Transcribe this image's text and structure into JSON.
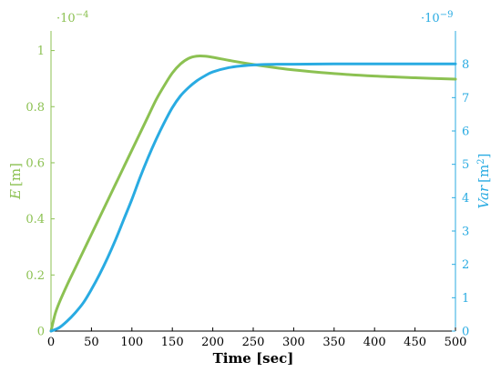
{
  "chart_data": {
    "type": "line",
    "x_axis": {
      "label": "Time [sec]",
      "range": [
        0,
        500
      ],
      "ticks": [
        0,
        50,
        100,
        150,
        200,
        250,
        300,
        350,
        400,
        450,
        500
      ],
      "tick_labels": [
        "0",
        "50",
        "100",
        "150",
        "200",
        "250",
        "300",
        "350",
        "400",
        "450",
        "500"
      ]
    },
    "left_axis": {
      "label_var": "E",
      "label_unit": "[m]",
      "multiplier_base": "·10",
      "multiplier_exp": "−4",
      "range": [
        0,
        1.07
      ],
      "ticks": [
        0,
        0.2,
        0.4,
        0.6,
        0.8,
        1
      ],
      "tick_labels": [
        "0",
        "0.2",
        "0.4",
        "0.6",
        "0.8",
        "1"
      ],
      "color": "#8cc152"
    },
    "right_axis": {
      "label_var": "Var",
      "label_unit_open": "[m",
      "label_unit_exp": "2",
      "label_unit_close": "]",
      "multiplier_base": "·10",
      "multiplier_exp": "−9",
      "range": [
        0,
        9.0
      ],
      "ticks": [
        0,
        1,
        2,
        3,
        4,
        5,
        6,
        7,
        8
      ],
      "tick_labels": [
        "0",
        "1",
        "2",
        "3",
        "4",
        "5",
        "6",
        "7",
        "8"
      ],
      "color": "#29abe2"
    },
    "grid": false,
    "series": [
      {
        "axis": "left",
        "color": "#8cc152",
        "x": [
          0,
          5,
          10,
          20,
          30,
          40,
          50,
          60,
          70,
          80,
          90,
          100,
          110,
          120,
          130,
          140,
          150,
          160,
          170,
          180,
          190,
          200,
          220,
          240,
          260,
          280,
          300,
          350,
          400,
          450,
          500
        ],
        "y": [
          0,
          0.06,
          0.1,
          0.165,
          0.225,
          0.285,
          0.345,
          0.405,
          0.465,
          0.525,
          0.585,
          0.645,
          0.705,
          0.765,
          0.825,
          0.875,
          0.92,
          0.952,
          0.972,
          0.98,
          0.98,
          0.976,
          0.965,
          0.955,
          0.946,
          0.938,
          0.931,
          0.918,
          0.909,
          0.903,
          0.898
        ]
      },
      {
        "axis": "right",
        "color": "#29abe2",
        "x": [
          0,
          10,
          20,
          30,
          40,
          50,
          60,
          70,
          80,
          90,
          100,
          110,
          120,
          130,
          140,
          150,
          160,
          170,
          180,
          190,
          200,
          220,
          240,
          260,
          280,
          300,
          350,
          400,
          450,
          500
        ],
        "y": [
          0,
          0.1,
          0.3,
          0.55,
          0.85,
          1.25,
          1.7,
          2.2,
          2.75,
          3.35,
          3.95,
          4.6,
          5.2,
          5.75,
          6.25,
          6.7,
          7.05,
          7.3,
          7.5,
          7.65,
          7.77,
          7.9,
          7.96,
          7.99,
          8.0,
          8.0,
          8.01,
          8.01,
          8.01,
          8.01
        ]
      }
    ]
  }
}
